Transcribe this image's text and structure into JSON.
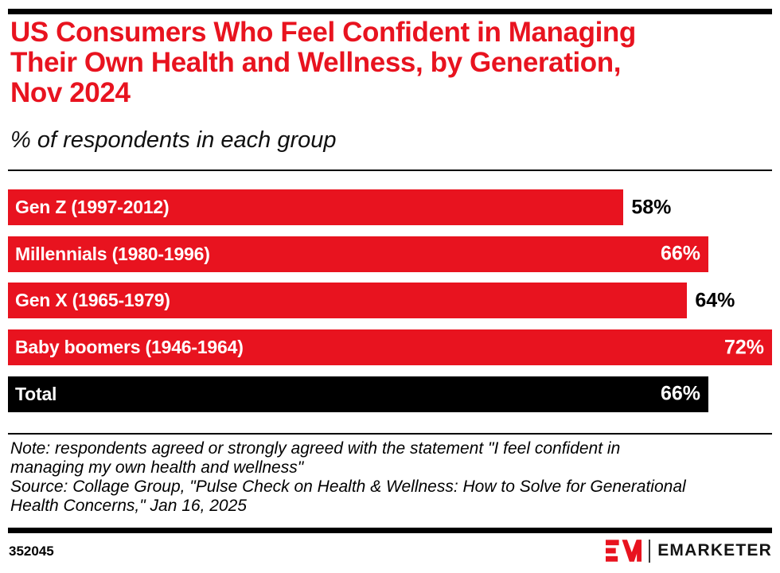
{
  "page": {
    "title": "US Consumers Who Feel Confident in Managing\nTheir Own Health and Wellness, by Generation,\nNov 2024",
    "subtitle": "% of respondents in each group"
  },
  "chart_data": {
    "type": "bar",
    "orientation": "horizontal",
    "title": "US Consumers Who Feel Confident in Managing Their Own Health and Wellness, by Generation, Nov 2024",
    "subtitle": "% of respondents in each group",
    "unit": "%",
    "axis_max": 72,
    "grid": false,
    "legend": false,
    "categories": [
      "Gen Z (1997-2012)",
      "Millennials (1980-1996)",
      "Gen X (1965-1979)",
      "Baby boomers (1946-1964)",
      "Total"
    ],
    "values": [
      58,
      66,
      64,
      72,
      66
    ],
    "bars": [
      {
        "label": "Gen Z (1997-2012)",
        "value": 58,
        "display": "58%",
        "color": "#e8131f",
        "value_inside": false
      },
      {
        "label": "Millennials (1980-1996)",
        "value": 66,
        "display": "66%",
        "color": "#e8131f",
        "value_inside": true
      },
      {
        "label": "Gen X (1965-1979)",
        "value": 64,
        "display": "64%",
        "color": "#e8131f",
        "value_inside": false
      },
      {
        "label": "Baby boomers (1946-1964)",
        "value": 72,
        "display": "72%",
        "color": "#e8131f",
        "value_inside": true
      },
      {
        "label": "Total",
        "value": 66,
        "display": "66%",
        "color": "#000000",
        "value_inside": true
      }
    ]
  },
  "footnote": {
    "note": "Note: respondents agreed or strongly agreed with the statement \"I feel confident in\nmanaging my own health and wellness\"",
    "source": "Source: Collage Group, \"Pulse Check on Health & Wellness: How to Solve for Generational\nHealth Concerns,\" Jan 16, 2025"
  },
  "footer": {
    "chart_id": "352045",
    "brand": "EMARKETER"
  },
  "colors": {
    "accent_red": "#e8131f",
    "black": "#000000",
    "background": "#ffffff"
  }
}
